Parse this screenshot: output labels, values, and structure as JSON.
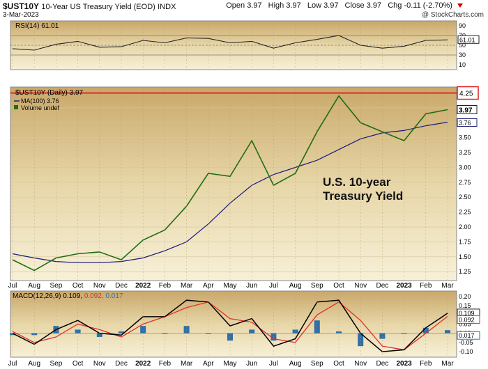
{
  "header": {
    "symbol": "$UST10Y",
    "name": "10-Year US Treasury Yield (EOD)",
    "exchange": "INDX",
    "date": "3-Mar-2023",
    "watermark": "@ StockCharts.com",
    "open": "Open 3.97",
    "high": "High 3.97",
    "low": "Low 3.97",
    "close": "Close 3.97",
    "chg": "Chg -0.11 (-2.70%)"
  },
  "colors": {
    "price": "#1e6e0f",
    "ma": "#1a1a7a",
    "macd": "#000000",
    "signal": "#e0302a",
    "histogram": "#2f6fa8",
    "resistance": "#e02020"
  },
  "months": [
    "Jul",
    "Aug",
    "Sep",
    "Oct",
    "Nov",
    "Dec",
    "2022",
    "Feb",
    "Mar",
    "Apr",
    "May",
    "Jun",
    "Jul",
    "Aug",
    "Sep",
    "Oct",
    "Nov",
    "Dec",
    "2023",
    "Feb",
    "Mar"
  ],
  "chart_data": [
    {
      "type": "line",
      "title": "RSI(14) 61.01",
      "ylim": [
        0,
        100
      ],
      "yticks": [
        10,
        30,
        50,
        70,
        90
      ],
      "reference_lines": [
        30,
        50,
        70
      ],
      "last_value": "61.01",
      "x": [
        "2021-07",
        "2021-08",
        "2021-09",
        "2021-10",
        "2021-11",
        "2021-12",
        "2022-01",
        "2022-02",
        "2022-03",
        "2022-04",
        "2022-05",
        "2022-06",
        "2022-07",
        "2022-08",
        "2022-09",
        "2022-10",
        "2022-11",
        "2022-12",
        "2023-01",
        "2023-02",
        "2023-03"
      ],
      "series": [
        {
          "name": "RSI(14)",
          "values": [
            43,
            40,
            52,
            58,
            46,
            47,
            60,
            55,
            65,
            64,
            55,
            58,
            44,
            55,
            62,
            70,
            50,
            44,
            48,
            60,
            61
          ]
        }
      ]
    },
    {
      "type": "line",
      "title": "$UST10Y (Daily) 3.97",
      "legend": [
        "MA(100) 3.76",
        "Volume undef"
      ],
      "ylim": [
        1.1,
        4.35
      ],
      "yticks": [
        1.25,
        1.5,
        1.75,
        2.0,
        2.25,
        2.5,
        2.75,
        3.0,
        3.25,
        3.5,
        3.75,
        4.0,
        4.25
      ],
      "resistance": 4.25,
      "last_price": "3.97",
      "last_ma": "3.76",
      "annotation": "U.S. 10-year Treasury Yield",
      "x": [
        "2021-07",
        "2021-08",
        "2021-09",
        "2021-10",
        "2021-11",
        "2021-12",
        "2022-01",
        "2022-02",
        "2022-03",
        "2022-04",
        "2022-05",
        "2022-06",
        "2022-07",
        "2022-08",
        "2022-09",
        "2022-10",
        "2022-11",
        "2022-12",
        "2023-01",
        "2023-02",
        "2023-03"
      ],
      "series": [
        {
          "name": "$UST10Y (Daily)",
          "values": [
            1.45,
            1.27,
            1.48,
            1.55,
            1.58,
            1.45,
            1.78,
            1.95,
            2.35,
            2.9,
            2.85,
            3.45,
            2.7,
            2.9,
            3.6,
            4.2,
            3.75,
            3.6,
            3.45,
            3.9,
            3.97
          ]
        },
        {
          "name": "MA(100)",
          "values": [
            1.55,
            1.48,
            1.42,
            1.4,
            1.4,
            1.42,
            1.48,
            1.6,
            1.75,
            2.05,
            2.4,
            2.7,
            2.88,
            3.0,
            3.12,
            3.3,
            3.48,
            3.58,
            3.62,
            3.7,
            3.76
          ]
        }
      ]
    },
    {
      "type": "line",
      "title": "MACD(12,26,9) 0.109, 0.092, 0.017",
      "ylim": [
        -0.13,
        0.23
      ],
      "yticks": [
        -0.1,
        -0.05,
        0.0,
        0.05,
        0.1,
        0.15,
        0.2
      ],
      "labels": {
        "macd": "0.109",
        "signal": "0.092",
        "histogram": "0.017"
      },
      "x": [
        "2021-07",
        "2021-08",
        "2021-09",
        "2021-10",
        "2021-11",
        "2021-12",
        "2022-01",
        "2022-02",
        "2022-03",
        "2022-04",
        "2022-05",
        "2022-06",
        "2022-07",
        "2022-08",
        "2022-09",
        "2022-10",
        "2022-11",
        "2022-12",
        "2023-01",
        "2023-02",
        "2023-03"
      ],
      "series": [
        {
          "name": "MACD",
          "values": [
            0.0,
            -0.06,
            0.02,
            0.07,
            0.0,
            -0.01,
            0.09,
            0.09,
            0.18,
            0.17,
            0.04,
            0.08,
            -0.07,
            -0.03,
            0.17,
            0.18,
            0.0,
            -0.1,
            -0.09,
            0.03,
            0.109
          ]
        },
        {
          "name": "Signal",
          "values": [
            0.01,
            -0.05,
            -0.02,
            0.05,
            0.02,
            -0.02,
            0.05,
            0.09,
            0.14,
            0.17,
            0.08,
            0.06,
            -0.03,
            -0.05,
            0.1,
            0.17,
            0.07,
            -0.07,
            -0.09,
            0.0,
            0.092
          ]
        },
        {
          "name": "Histogram",
          "values": [
            -0.01,
            -0.01,
            0.04,
            0.02,
            -0.02,
            0.01,
            0.04,
            0.0,
            0.04,
            0.0,
            -0.04,
            0.02,
            -0.04,
            0.02,
            0.07,
            0.01,
            -0.07,
            -0.03,
            0.0,
            0.03,
            0.017
          ]
        }
      ]
    }
  ]
}
